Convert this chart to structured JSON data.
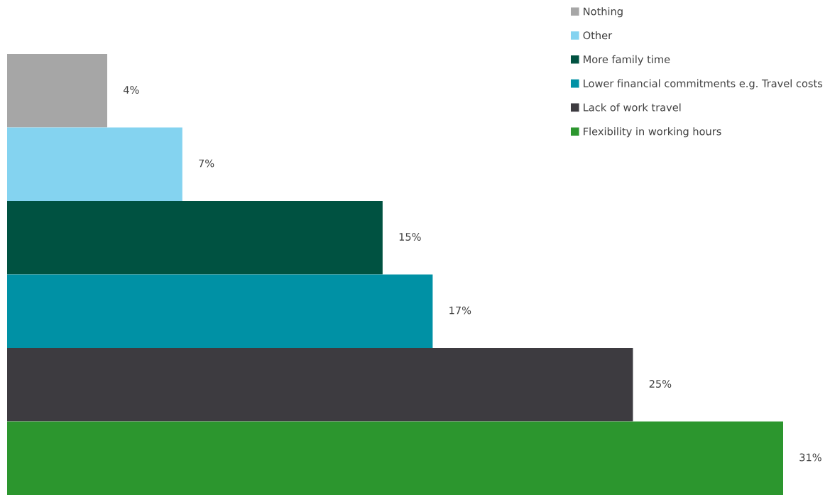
{
  "chart_data": {
    "type": "bar",
    "orientation": "horizontal",
    "stacked": true,
    "legend": "top right",
    "categories": [
      null,
      null,
      null,
      null,
      null,
      null
    ],
    "series": [
      {
        "name": "Nothing",
        "color": "#a6a6a6",
        "values": [
          4,
          null,
          null,
          null,
          null,
          null
        ],
        "value_labels": [
          "4%",
          null,
          null,
          null,
          null,
          null
        ]
      },
      {
        "name": "Other",
        "color": "#84d3f0",
        "values": [
          null,
          7,
          null,
          null,
          null,
          null
        ],
        "value_labels": [
          null,
          "7%",
          null,
          null,
          null,
          null
        ]
      },
      {
        "name": "More family time",
        "color": "#005241",
        "values": [
          null,
          null,
          15,
          null,
          null,
          null
        ],
        "value_labels": [
          null,
          null,
          "15%",
          null,
          null,
          null
        ]
      },
      {
        "name": "Lower financial commitments e.g. Travel costs",
        "color": "#0091a5",
        "values": [
          null,
          null,
          null,
          17,
          null,
          null
        ],
        "value_labels": [
          null,
          null,
          null,
          "17%",
          null,
          null
        ]
      },
      {
        "name": "Lack of work travel",
        "color": "#3d3b40",
        "values": [
          null,
          null,
          null,
          null,
          25,
          null
        ],
        "value_labels": [
          null,
          null,
          null,
          null,
          "25%",
          null
        ]
      },
      {
        "name": "Flexibility in working hours",
        "color": "#2c962e",
        "values": [
          null,
          null,
          null,
          null,
          null,
          31
        ],
        "value_labels": [
          null,
          null,
          null,
          null,
          null,
          "31%"
        ]
      }
    ]
  }
}
